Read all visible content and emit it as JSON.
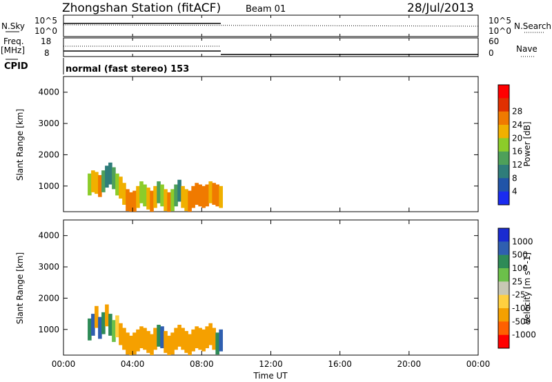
{
  "header": {
    "title": "Zhongshan Station (fitACF)",
    "beam": "Beam 01",
    "date": "28/Jul/2013"
  },
  "status_panels": {
    "nsky_label": "N.Sky",
    "nsky_ticks": [
      "10^5",
      "10^0"
    ],
    "nsearch_label": "N.Search",
    "nsearch_ticks": [
      "10^5",
      "10^0"
    ],
    "freq_label": [
      "Freq.",
      "[MHz]"
    ],
    "freq_ticks": [
      "18",
      "8"
    ],
    "nave_label": "Nave",
    "nave_ticks": [
      "60",
      "0"
    ],
    "cpid_label": "CPID",
    "cpid_text": "normal (fast stereo) 153"
  },
  "chart_data": [
    {
      "type": "heatmap",
      "name": "power",
      "ylabel": "Slant Range [km]",
      "xlabel": "Time UT",
      "x_ticks": [
        "00:00",
        "04:00",
        "08:00",
        "12:00",
        "16:00",
        "20:00",
        "00:00"
      ],
      "x_range_hours": [
        0,
        24
      ],
      "y_ticks": [
        1000,
        2000,
        3000,
        4000
      ],
      "ylim": [
        180,
        4500
      ],
      "data_time_range_hours": [
        0,
        9.1
      ],
      "colorbar": {
        "label": "Power [dB]",
        "ticks": [
          "4",
          "8",
          "12",
          "16",
          "20",
          "24",
          "28"
        ],
        "colors": [
          "#1a2bf0",
          "#2154a8",
          "#2f7d7a",
          "#4ea05a",
          "#8ccc2a",
          "#f0b000",
          "#f07a00",
          "#e03000",
          "#ff0000"
        ]
      },
      "cells": [
        {
          "t": 1.4,
          "r": 1050,
          "v": 20
        },
        {
          "t": 1.6,
          "r": 1150,
          "v": 22
        },
        {
          "t": 1.8,
          "r": 1100,
          "v": 24
        },
        {
          "t": 2.0,
          "r": 1000,
          "v": 26
        },
        {
          "t": 2.2,
          "r": 1150,
          "v": 14
        },
        {
          "t": 2.4,
          "r": 1300,
          "v": 12
        },
        {
          "t": 2.6,
          "r": 1400,
          "v": 10
        },
        {
          "t": 2.8,
          "r": 1250,
          "v": 16
        },
        {
          "t": 3.0,
          "r": 1050,
          "v": 18
        },
        {
          "t": 3.2,
          "r": 950,
          "v": 22
        },
        {
          "t": 3.4,
          "r": 750,
          "v": 24
        },
        {
          "t": 3.6,
          "r": 550,
          "v": 26
        },
        {
          "t": 3.8,
          "r": 450,
          "v": 28
        },
        {
          "t": 4.0,
          "r": 500,
          "v": 26
        },
        {
          "t": 4.2,
          "r": 650,
          "v": 22
        },
        {
          "t": 4.4,
          "r": 800,
          "v": 18
        },
        {
          "t": 4.6,
          "r": 700,
          "v": 20
        },
        {
          "t": 4.8,
          "r": 600,
          "v": 24
        },
        {
          "t": 5.0,
          "r": 500,
          "v": 26
        },
        {
          "t": 5.2,
          "r": 650,
          "v": 22
        },
        {
          "t": 5.4,
          "r": 800,
          "v": 16
        },
        {
          "t": 5.6,
          "r": 700,
          "v": 20
        },
        {
          "t": 5.8,
          "r": 550,
          "v": 24
        },
        {
          "t": 6.0,
          "r": 450,
          "v": 26
        },
        {
          "t": 6.2,
          "r": 550,
          "v": 20
        },
        {
          "t": 6.4,
          "r": 700,
          "v": 16
        },
        {
          "t": 6.6,
          "r": 850,
          "v": 12
        },
        {
          "t": 6.8,
          "r": 650,
          "v": 22
        },
        {
          "t": 7.0,
          "r": 550,
          "v": 24
        },
        {
          "t": 7.2,
          "r": 500,
          "v": 28
        },
        {
          "t": 7.4,
          "r": 650,
          "v": 26
        },
        {
          "t": 7.6,
          "r": 750,
          "v": 28
        },
        {
          "t": 7.8,
          "r": 700,
          "v": 26
        },
        {
          "t": 8.0,
          "r": 650,
          "v": 28
        },
        {
          "t": 8.2,
          "r": 700,
          "v": 26
        },
        {
          "t": 8.4,
          "r": 800,
          "v": 24
        },
        {
          "t": 8.6,
          "r": 750,
          "v": 26
        },
        {
          "t": 8.8,
          "r": 700,
          "v": 28
        },
        {
          "t": 9.0,
          "r": 650,
          "v": 24
        }
      ]
    },
    {
      "type": "heatmap",
      "name": "velocity",
      "ylabel": "Slant Range [km]",
      "xlabel": "Time UT",
      "x_ticks": [
        "00:00",
        "04:00",
        "08:00",
        "12:00",
        "16:00",
        "20:00",
        "00:00"
      ],
      "x_range_hours": [
        0,
        24
      ],
      "y_ticks": [
        1000,
        2000,
        3000,
        4000
      ],
      "ylim": [
        180,
        4500
      ],
      "data_time_range_hours": [
        0,
        9.1
      ],
      "colorbar": {
        "label": "Velocity [m s^-1]",
        "ticks": [
          "1000",
          "500",
          "100",
          "25",
          "-25",
          "-100",
          "-500",
          "-1000"
        ],
        "colors": [
          "#1a2bd0",
          "#2f5fb0",
          "#2e8b57",
          "#6cc04a",
          "#c8c8b4",
          "#ffd040",
          "#f5a000",
          "#ff6000",
          "#ff0000"
        ]
      },
      "cells": [
        {
          "t": 1.4,
          "r": 1000,
          "v": 300
        },
        {
          "t": 1.6,
          "r": 1150,
          "v": 600
        },
        {
          "t": 1.8,
          "r": 1400,
          "v": -200
        },
        {
          "t": 2.0,
          "r": 1050,
          "v": 800
        },
        {
          "t": 2.2,
          "r": 1200,
          "v": 400
        },
        {
          "t": 2.4,
          "r": 1450,
          "v": -150
        },
        {
          "t": 2.6,
          "r": 1150,
          "v": 200
        },
        {
          "t": 2.8,
          "r": 950,
          "v": 50
        },
        {
          "t": 3.0,
          "r": 1100,
          "v": -80
        },
        {
          "t": 3.2,
          "r": 850,
          "v": -200
        },
        {
          "t": 3.4,
          "r": 700,
          "v": -300
        },
        {
          "t": 3.6,
          "r": 550,
          "v": -250
        },
        {
          "t": 3.8,
          "r": 450,
          "v": -200
        },
        {
          "t": 4.0,
          "r": 550,
          "v": -150
        },
        {
          "t": 4.2,
          "r": 650,
          "v": -300
        },
        {
          "t": 4.4,
          "r": 750,
          "v": -200
        },
        {
          "t": 4.6,
          "r": 700,
          "v": -250
        },
        {
          "t": 4.8,
          "r": 600,
          "v": -300
        },
        {
          "t": 5.0,
          "r": 500,
          "v": -200
        },
        {
          "t": 5.2,
          "r": 700,
          "v": -150
        },
        {
          "t": 5.4,
          "r": 800,
          "v": 300
        },
        {
          "t": 5.6,
          "r": 750,
          "v": 600
        },
        {
          "t": 5.8,
          "r": 600,
          "v": -200
        },
        {
          "t": 6.0,
          "r": 450,
          "v": -300
        },
        {
          "t": 6.2,
          "r": 550,
          "v": -250
        },
        {
          "t": 6.4,
          "r": 700,
          "v": -200
        },
        {
          "t": 6.6,
          "r": 800,
          "v": -150
        },
        {
          "t": 6.8,
          "r": 700,
          "v": -250
        },
        {
          "t": 7.0,
          "r": 600,
          "v": -300
        },
        {
          "t": 7.2,
          "r": 500,
          "v": -200
        },
        {
          "t": 7.4,
          "r": 650,
          "v": -150
        },
        {
          "t": 7.6,
          "r": 750,
          "v": -250
        },
        {
          "t": 7.8,
          "r": 700,
          "v": -300
        },
        {
          "t": 8.0,
          "r": 650,
          "v": -200
        },
        {
          "t": 8.2,
          "r": 750,
          "v": -150
        },
        {
          "t": 8.4,
          "r": 850,
          "v": -100
        },
        {
          "t": 8.6,
          "r": 700,
          "v": -200
        },
        {
          "t": 8.8,
          "r": 550,
          "v": 400
        },
        {
          "t": 9.0,
          "r": 650,
          "v": 700
        }
      ]
    }
  ]
}
